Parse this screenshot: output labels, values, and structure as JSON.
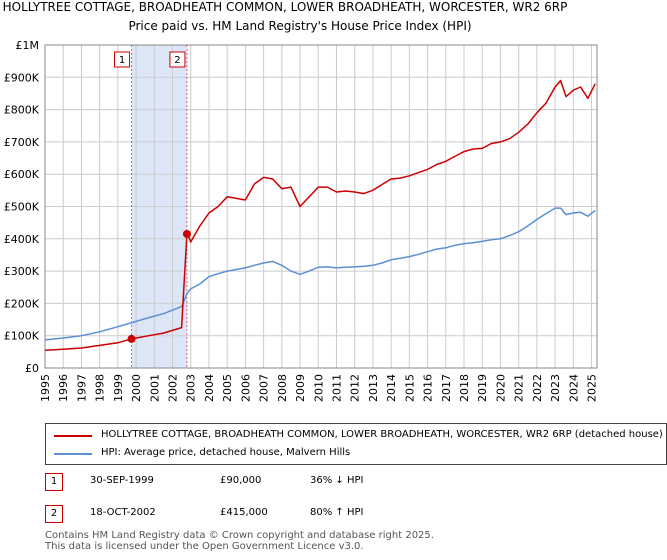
{
  "chart_data": {
    "type": "line",
    "title": "HOLLYTREE COTTAGE, BROADHEATH COMMON, LOWER BROADHEATH, WORCESTER, WR2 6RP",
    "subtitle": "Price paid vs. HM Land Registry's House Price Index (HPI)",
    "xlabel": "",
    "ylabel": "",
    "xlim": [
      1995,
      2025.3
    ],
    "ylim": [
      0,
      1000000
    ],
    "y_ticks": [
      0,
      100000,
      200000,
      300000,
      400000,
      500000,
      600000,
      700000,
      800000,
      900000,
      1000000
    ],
    "y_tick_labels": [
      "£0",
      "£100K",
      "£200K",
      "£300K",
      "£400K",
      "£500K",
      "£600K",
      "£700K",
      "£800K",
      "£900K",
      "£1M"
    ],
    "x_ticks": [
      "1995",
      "1996",
      "1997",
      "1998",
      "1999",
      "2000",
      "2001",
      "2002",
      "2003",
      "2004",
      "2005",
      "2006",
      "2007",
      "2008",
      "2009",
      "2010",
      "2011",
      "2012",
      "2013",
      "2014",
      "2015",
      "2016",
      "2017",
      "2018",
      "2019",
      "2020",
      "2021",
      "2022",
      "2023",
      "2024",
      "2025"
    ],
    "grid": true,
    "shaded_region": {
      "from": 1999.75,
      "to": 2002.79,
      "color": "#dde6f7"
    },
    "series": [
      {
        "name": "HOLLYTREE COTTAGE, BROADHEATH COMMON, LOWER BROADHEATH, WORCESTER, WR2 6RP (detached house)",
        "color": "#cc0000",
        "x": [
          1995.0,
          1996.0,
          1997.0,
          1998.0,
          1999.0,
          1999.75,
          2000.5,
          2001.5,
          2002.5,
          2002.79,
          2002.9,
          2003.0,
          2003.5,
          2004.0,
          2004.5,
          2005.0,
          2005.5,
          2006.0,
          2006.5,
          2007.0,
          2007.5,
          2008.0,
          2008.5,
          2009.0,
          2009.5,
          2010.0,
          2010.5,
          2011.0,
          2011.5,
          2012.0,
          2012.5,
          2013.0,
          2013.5,
          2014.0,
          2014.5,
          2015.0,
          2015.5,
          2016.0,
          2016.5,
          2017.0,
          2017.5,
          2018.0,
          2018.5,
          2019.0,
          2019.5,
          2020.0,
          2020.5,
          2021.0,
          2021.5,
          2022.0,
          2022.5,
          2023.0,
          2023.3,
          2023.6,
          2024.0,
          2024.4,
          2024.8,
          2025.2
        ],
        "values": [
          55000,
          58000,
          62000,
          70000,
          78000,
          90000,
          98000,
          108000,
          125000,
          415000,
          405000,
          390000,
          440000,
          480000,
          500000,
          530000,
          525000,
          520000,
          570000,
          590000,
          585000,
          555000,
          560000,
          500000,
          530000,
          560000,
          560000,
          545000,
          548000,
          545000,
          540000,
          550000,
          568000,
          585000,
          588000,
          595000,
          605000,
          615000,
          630000,
          640000,
          655000,
          670000,
          678000,
          680000,
          695000,
          700000,
          710000,
          730000,
          755000,
          790000,
          820000,
          870000,
          890000,
          840000,
          860000,
          870000,
          835000,
          880000
        ]
      },
      {
        "name": "HPI: Average price, detached house, Malvern Hills",
        "color": "#5b8fd6",
        "x": [
          1995.0,
          1996.0,
          1997.0,
          1998.0,
          1999.0,
          1999.75,
          2000.5,
          2001.5,
          2002.5,
          2002.79,
          2003.0,
          2003.5,
          2004.0,
          2004.5,
          2005.0,
          2005.5,
          2006.0,
          2006.5,
          2007.0,
          2007.5,
          2008.0,
          2008.5,
          2009.0,
          2009.5,
          2010.0,
          2010.5,
          2011.0,
          2011.5,
          2012.0,
          2012.5,
          2013.0,
          2013.5,
          2014.0,
          2014.5,
          2015.0,
          2015.5,
          2016.0,
          2016.5,
          2017.0,
          2017.5,
          2018.0,
          2018.5,
          2019.0,
          2019.5,
          2020.0,
          2020.5,
          2021.0,
          2021.5,
          2022.0,
          2022.5,
          2023.0,
          2023.3,
          2023.6,
          2024.0,
          2024.4,
          2024.8,
          2025.2
        ],
        "values": [
          87000,
          93000,
          100000,
          112000,
          128000,
          140000,
          153000,
          168000,
          190000,
          230000,
          245000,
          260000,
          283000,
          292000,
          300000,
          305000,
          310000,
          318000,
          325000,
          330000,
          318000,
          300000,
          290000,
          300000,
          312000,
          313000,
          310000,
          312000,
          313000,
          315000,
          318000,
          325000,
          335000,
          340000,
          345000,
          352000,
          360000,
          368000,
          372000,
          380000,
          385000,
          388000,
          392000,
          397000,
          400000,
          410000,
          422000,
          440000,
          460000,
          478000,
          495000,
          495000,
          475000,
          480000,
          482000,
          470000,
          488000
        ]
      }
    ],
    "sale_markers": [
      {
        "label": "1",
        "x": 1999.75,
        "value": 90000
      },
      {
        "label": "2",
        "x": 2002.79,
        "value": 415000
      }
    ]
  },
  "legend": {
    "property_label": "HOLLYTREE COTTAGE, BROADHEATH COMMON, LOWER BROADHEATH, WORCESTER, WR2 6RP (detached house)",
    "hpi_label": "HPI: Average price, detached house, Malvern Hills"
  },
  "transactions": [
    {
      "num": "1",
      "date": "30-SEP-1999",
      "price": "£90,000",
      "hpi": "36% ↓ HPI"
    },
    {
      "num": "2",
      "date": "18-OCT-2002",
      "price": "£415,000",
      "hpi": "80% ↑ HPI"
    }
  ],
  "footer": {
    "line1": "Contains HM Land Registry data © Crown copyright and database right 2025.",
    "line2": "This data is licensed under the Open Government Licence v3.0."
  },
  "colors": {
    "property": "#cc0000",
    "hpi": "#5b8fd6",
    "grid": "#cccccc",
    "shade": "#dde6f7"
  }
}
